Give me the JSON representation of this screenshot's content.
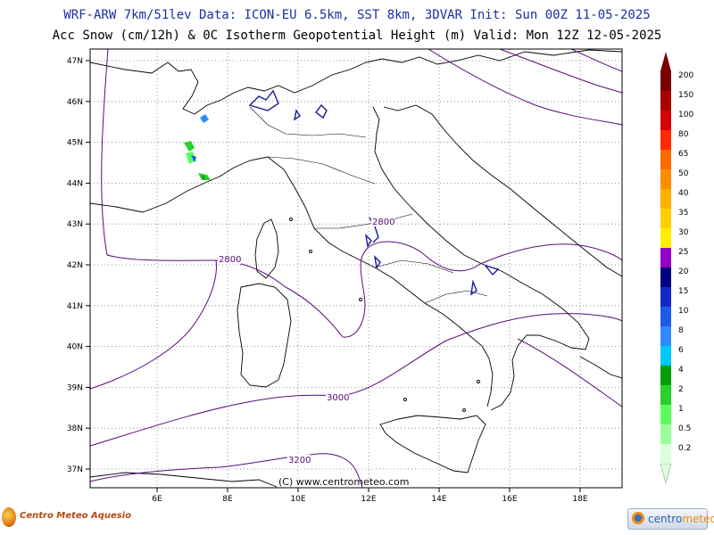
{
  "header": {
    "line1": "WRF-ARW 7km/51lev  Data: ICON-EU 6.5km, SST 8km, 3DVAR  Init: Sun 00Z 11-05-2025",
    "line2": "Acc Snow (cm/12h) & 0C Isotherm Geopotential Height (m)  Valid: Mon 12Z 12-05-2025"
  },
  "axes": {
    "lat_labels": [
      "47N",
      "46N",
      "45N",
      "44N",
      "43N",
      "42N",
      "41N",
      "40N",
      "39N",
      "38N",
      "37N"
    ],
    "lon_labels": [
      "6E",
      "8E",
      "10E",
      "12E",
      "14E",
      "16E",
      "18E"
    ]
  },
  "contour_labels": [
    "2800",
    "2800",
    "3000",
    "3200"
  ],
  "color_scale": {
    "labels": [
      "200",
      "150",
      "100",
      "80",
      "65",
      "50",
      "40",
      "35",
      "30",
      "25",
      "20",
      "15",
      "10",
      "8",
      "6",
      "4",
      "2",
      "1",
      "0.5",
      "0.2"
    ],
    "colors": [
      "#7a0000",
      "#a80000",
      "#d80000",
      "#ff2a00",
      "#ff6a00",
      "#ff8c00",
      "#ffb000",
      "#ffd000",
      "#ffee00",
      "#9400c8",
      "#000080",
      "#1428c8",
      "#1e5ae6",
      "#2f8cff",
      "#00c8ff",
      "#00a000",
      "#28d228",
      "#5aff5a",
      "#9cff9c",
      "#dcffdc"
    ]
  },
  "watermark": "(C) www.centrometeo.com",
  "footer": {
    "left_brand": "Centro Meteo Aquesio",
    "right_brand_a": "centro",
    "right_brand_b": "meteo"
  }
}
